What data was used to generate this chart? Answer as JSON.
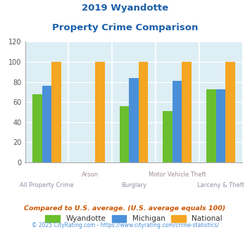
{
  "title_line1": "2019 Wyandotte",
  "title_line2": "Property Crime Comparison",
  "categories": [
    "All Property Crime",
    "Arson",
    "Burglary",
    "Motor Vehicle Theft",
    "Larceny & Theft"
  ],
  "wyandotte": [
    68,
    0,
    56,
    51,
    73
  ],
  "michigan": [
    76,
    0,
    84,
    81,
    73
  ],
  "national": [
    100,
    100,
    100,
    100,
    100
  ],
  "wyandotte_color": "#6abf2e",
  "michigan_color": "#4a90d9",
  "national_color": "#f5a623",
  "ylim": [
    0,
    120
  ],
  "yticks": [
    0,
    20,
    40,
    60,
    80,
    100,
    120
  ],
  "background_color": "#ddeef5",
  "title_color": "#1a5fa8",
  "xlabel_color_upper": "#a09090",
  "xlabel_color_lower": "#9090a8",
  "legend_labels": [
    "Wyandotte",
    "Michigan",
    "National"
  ],
  "footnote1": "Compared to U.S. average. (U.S. average equals 100)",
  "footnote2": "© 2025 CityRating.com - https://www.cityrating.com/crime-statistics/",
  "footnote1_color": "#cc5500",
  "footnote2_color": "#4a90d9",
  "bar_width": 0.22
}
